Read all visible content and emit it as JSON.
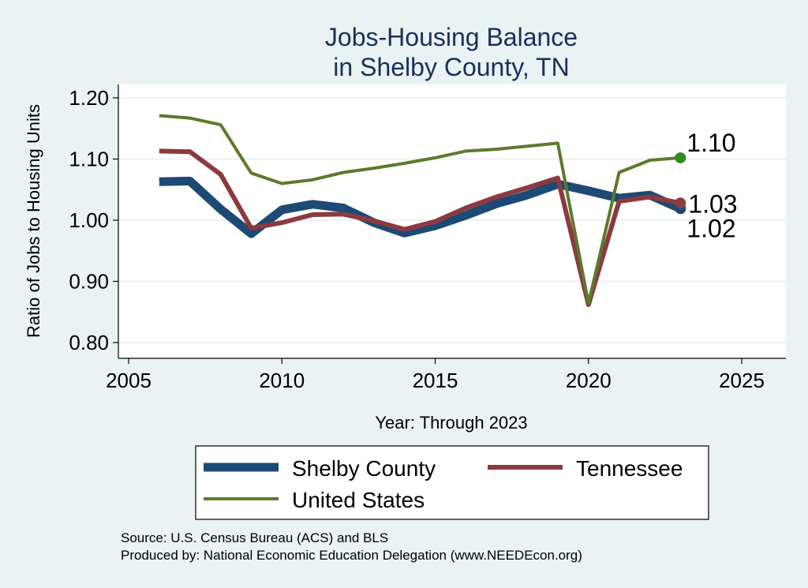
{
  "chart_data": {
    "type": "line",
    "title_lines": [
      "Jobs-Housing Balance",
      "in Shelby County, TN"
    ],
    "xlabel": "Year: Through 2023",
    "ylabel": "Ratio of Jobs to Housing Units",
    "xlim": [
      2004.5,
      2026.5
    ],
    "ylim": [
      0.78,
      1.22
    ],
    "xticks": [
      2005,
      2010,
      2015,
      2020,
      2025
    ],
    "yticks": [
      0.8,
      0.9,
      1.0,
      1.1,
      1.2
    ],
    "ytick_labels": [
      "0.80",
      "0.90",
      "1.00",
      "1.10",
      "1.20"
    ],
    "grid": true,
    "x": [
      2006,
      2007,
      2008,
      2009,
      2010,
      2011,
      2012,
      2013,
      2014,
      2015,
      2016,
      2017,
      2018,
      2019,
      2020,
      2021,
      2022,
      2023
    ],
    "series": [
      {
        "name": "Shelby County",
        "color": "#1c4a74",
        "values": [
          1.063,
          1.064,
          1.018,
          0.978,
          1.017,
          1.026,
          1.02,
          0.996,
          0.979,
          0.991,
          1.008,
          1.027,
          1.041,
          1.059,
          1.048,
          1.036,
          1.041,
          1.019
        ],
        "end_label": "1.02"
      },
      {
        "name": "Tennessee",
        "color": "#8c3a3f",
        "values": [
          1.113,
          1.112,
          1.075,
          0.987,
          0.996,
          1.009,
          1.01,
          0.999,
          0.985,
          0.998,
          1.02,
          1.038,
          1.053,
          1.069,
          0.862,
          1.031,
          1.038,
          1.028
        ],
        "end_label": "1.03"
      },
      {
        "name": "United States",
        "color": "#5b7a2e",
        "end_marker_color": "#2e8b1e",
        "values": [
          1.171,
          1.167,
          1.156,
          1.077,
          1.06,
          1.066,
          1.078,
          1.085,
          1.093,
          1.102,
          1.113,
          1.116,
          1.121,
          1.126,
          0.864,
          1.078,
          1.098,
          1.102
        ],
        "end_label": "1.10"
      }
    ],
    "legend": {
      "placement": "bottom",
      "entries": [
        "Shelby County",
        "Tennessee",
        "United States"
      ]
    },
    "source_lines": [
      "Source: U.S. Census Bureau (ACS) and BLS",
      "Produced by: National Economic Education Delegation (www.NEEDEcon.org)"
    ]
  }
}
